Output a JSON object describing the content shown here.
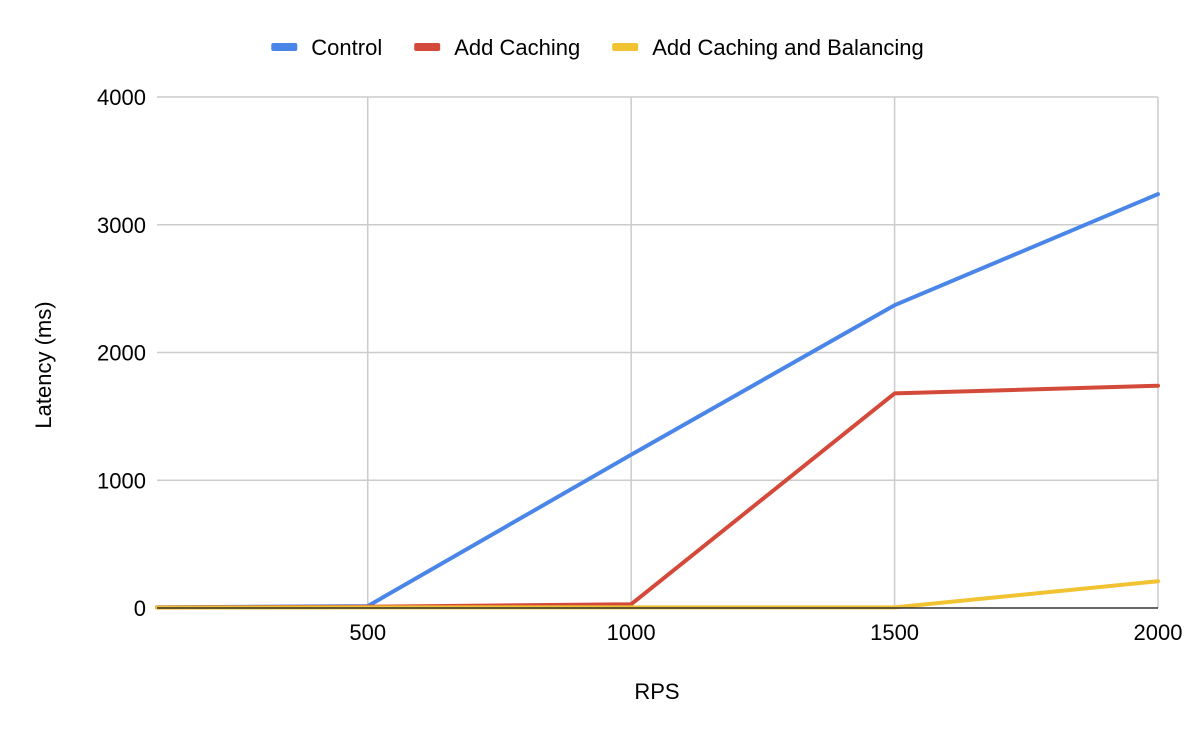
{
  "chart_data": {
    "type": "line",
    "title": "",
    "xlabel": "RPS",
    "ylabel": "Latency (ms)",
    "x": [
      100,
      500,
      1000,
      1500,
      2000
    ],
    "xlim": [
      100,
      2000
    ],
    "ylim": [
      0,
      4000
    ],
    "x_ticks": [
      500,
      1000,
      1500,
      2000
    ],
    "y_ticks": [
      0,
      1000,
      2000,
      3000,
      4000
    ],
    "grid": true,
    "legend_position": "top",
    "series": [
      {
        "name": "Control",
        "color": "#4a86e8",
        "values": [
          5,
          15,
          1200,
          2370,
          3240
        ]
      },
      {
        "name": "Add Caching",
        "color": "#d44a3a",
        "values": [
          5,
          10,
          30,
          1680,
          1740
        ]
      },
      {
        "name": "Add Caching and Balancing",
        "color": "#f1c232",
        "values": [
          3,
          5,
          5,
          5,
          210
        ]
      }
    ]
  }
}
